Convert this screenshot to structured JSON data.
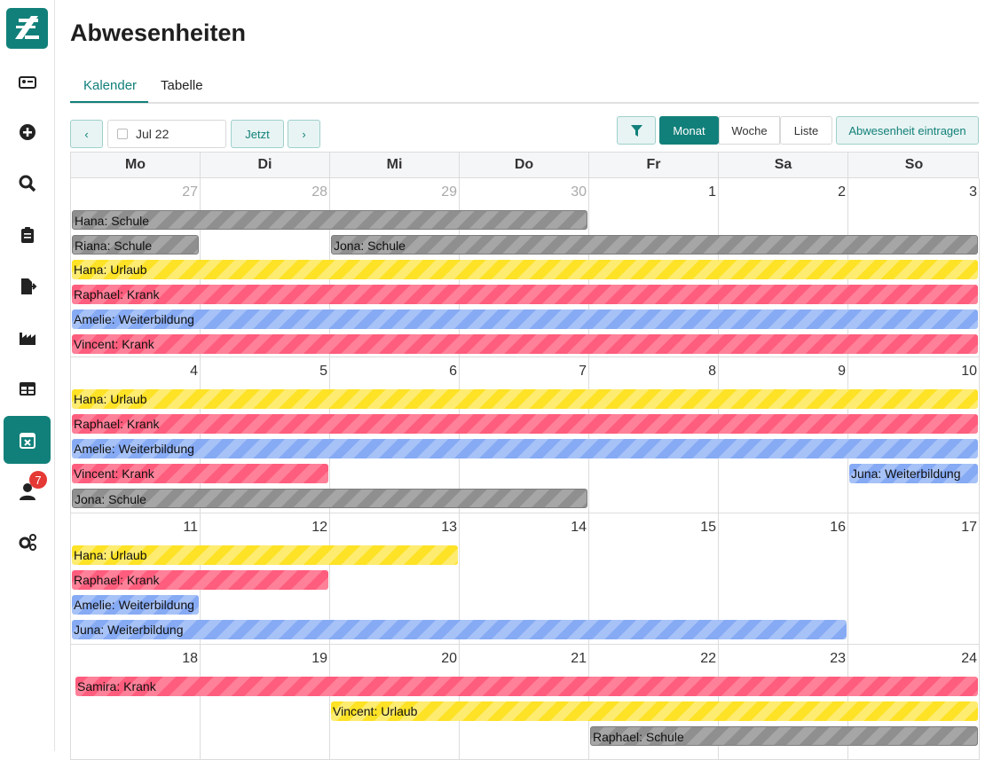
{
  "page": {
    "title": "Abwesenheiten"
  },
  "sidebar": {
    "logo": "logo-icon",
    "items": [
      {
        "icon": "id-card-icon"
      },
      {
        "icon": "plus-circle-icon"
      },
      {
        "icon": "search-icon"
      },
      {
        "icon": "clipboard-icon"
      },
      {
        "icon": "file-export-icon"
      },
      {
        "icon": "factory-icon"
      },
      {
        "icon": "table-icon"
      },
      {
        "icon": "calendar-x-icon",
        "active": true
      },
      {
        "icon": "user-icon",
        "badge": "7"
      },
      {
        "icon": "gears-icon"
      }
    ]
  },
  "tabs": [
    {
      "label": "Kalender",
      "active": true
    },
    {
      "label": "Tabelle"
    }
  ],
  "toolbar": {
    "prev_icon": "chevron-left-icon",
    "date_value": "Jul 22",
    "today_label": "Jetzt",
    "next_icon": "chevron-right-icon",
    "filter_icon": "filter-icon",
    "views": [
      "Monat",
      "Woche",
      "Liste"
    ],
    "active_view": "Monat",
    "add_label": "Abwesenheit eintragen"
  },
  "calendar": {
    "weekdays": [
      "Mo",
      "Di",
      "Mi",
      "Do",
      "Fr",
      "Sa",
      "So"
    ],
    "weeks": [
      {
        "days": [
          {
            "num": "27",
            "other": true
          },
          {
            "num": "28",
            "other": true
          },
          {
            "num": "29",
            "other": true
          },
          {
            "num": "30",
            "other": true
          },
          {
            "num": "1"
          },
          {
            "num": "2"
          },
          {
            "num": "3"
          }
        ],
        "events": [
          {
            "label": "Hana: Schule",
            "start": 0,
            "end": 3,
            "row": 0,
            "color": "gray"
          },
          {
            "label": "Riana: Schule",
            "start": 0,
            "end": 0,
            "row": 1,
            "color": "gray"
          },
          {
            "label": "Jona: Schule",
            "start": 2,
            "end": 6,
            "row": 1,
            "color": "gray"
          },
          {
            "label": "Hana: Urlaub",
            "start": 0,
            "end": 6,
            "row": 2,
            "color": "yellow"
          },
          {
            "label": "Raphael: Krank",
            "start": 0,
            "end": 6,
            "row": 3,
            "color": "red"
          },
          {
            "label": "Amelie: Weiterbildung",
            "start": 0,
            "end": 6,
            "row": 4,
            "color": "blue"
          },
          {
            "label": "Vincent: Krank",
            "start": 0,
            "end": 6,
            "row": 5,
            "color": "red"
          }
        ]
      },
      {
        "days": [
          {
            "num": "4"
          },
          {
            "num": "5"
          },
          {
            "num": "6"
          },
          {
            "num": "7"
          },
          {
            "num": "8"
          },
          {
            "num": "9"
          },
          {
            "num": "10"
          }
        ],
        "events": [
          {
            "label": "Hana: Urlaub",
            "start": 0,
            "end": 6,
            "row": 0,
            "color": "yellow"
          },
          {
            "label": "Raphael: Krank",
            "start": 0,
            "end": 6,
            "row": 1,
            "color": "red"
          },
          {
            "label": "Amelie: Weiterbildung",
            "start": 0,
            "end": 6,
            "row": 2,
            "color": "blue"
          },
          {
            "label": "Vincent: Krank",
            "start": 0,
            "end": 1,
            "row": 3,
            "color": "red"
          },
          {
            "label": "Juna: Weiterbildung",
            "start": 6,
            "end": 6,
            "row": 3,
            "color": "blue"
          },
          {
            "label": "Jona: Schule",
            "start": 0,
            "end": 3,
            "row": 4,
            "color": "gray"
          }
        ]
      },
      {
        "days": [
          {
            "num": "11"
          },
          {
            "num": "12"
          },
          {
            "num": "13"
          },
          {
            "num": "14"
          },
          {
            "num": "15"
          },
          {
            "num": "16"
          },
          {
            "num": "17"
          }
        ],
        "events": [
          {
            "label": "Hana: Urlaub",
            "start": 0,
            "end": 2,
            "row": 0,
            "color": "yellow"
          },
          {
            "label": "Raphael: Krank",
            "start": 0,
            "end": 1,
            "row": 1,
            "color": "red"
          },
          {
            "label": "Amelie: Weiterbildung",
            "start": 0,
            "end": 0,
            "row": 2,
            "color": "blue"
          },
          {
            "label": "Juna: Weiterbildung",
            "start": 0,
            "end": 5,
            "row": 3,
            "color": "blue"
          }
        ]
      },
      {
        "days": [
          {
            "num": "18"
          },
          {
            "num": "19"
          },
          {
            "num": "20"
          },
          {
            "num": "21"
          },
          {
            "num": "22"
          },
          {
            "num": "23"
          },
          {
            "num": "24"
          }
        ],
        "events": [
          {
            "label": "Samira: Krank",
            "start": 0,
            "end": 6,
            "row": 0,
            "color": "red"
          },
          {
            "label": "Vincent: Urlaub",
            "start": 2,
            "end": 6,
            "row": 1,
            "color": "yellow"
          },
          {
            "label": "Raphael: Schule",
            "start": 4,
            "end": 6,
            "row": 2,
            "color": "gray"
          }
        ]
      }
    ]
  },
  "colors": {
    "accent": "#12807a",
    "badge": "#e53935"
  }
}
